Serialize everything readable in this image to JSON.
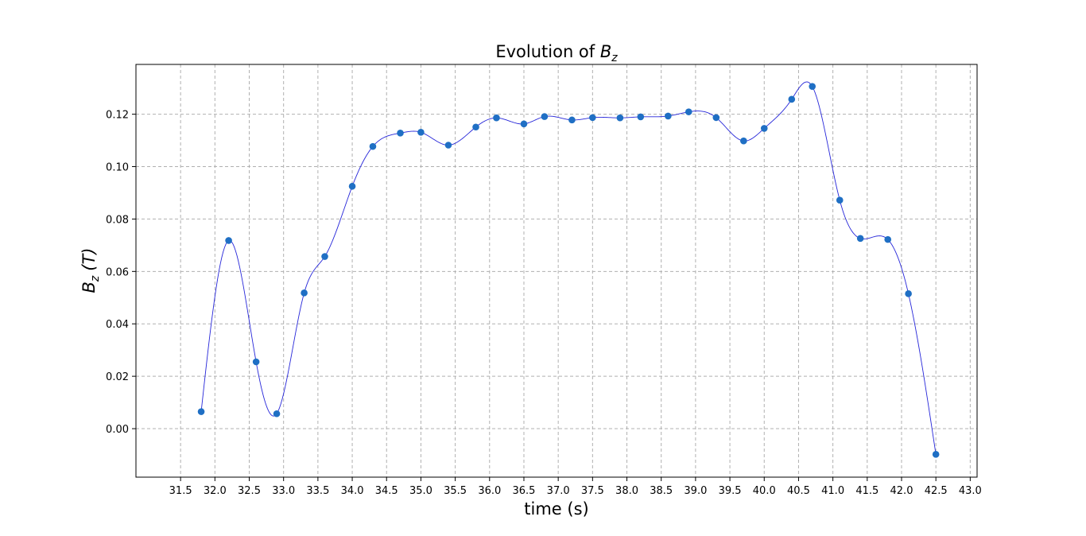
{
  "chart_data": {
    "type": "scatter",
    "title_prefix": "Evolution of ",
    "title_symbol": "B",
    "title_subscript": "z",
    "xlabel": "time (s)",
    "ylabel_symbol": "B",
    "ylabel_subscript": "z",
    "ylabel_unit": "(T)",
    "xlim": [
      30.85,
      43.1
    ],
    "ylim": [
      -0.0185,
      0.139
    ],
    "x_ticks": [
      31.5,
      32.0,
      32.5,
      33.0,
      33.5,
      34.0,
      34.5,
      35.0,
      35.5,
      36.0,
      36.5,
      37.0,
      37.5,
      38.0,
      38.5,
      39.0,
      39.5,
      40.0,
      40.5,
      41.0,
      41.5,
      42.0,
      42.5,
      43.0
    ],
    "x_tick_labels": [
      "31.5",
      "32.0",
      "32.5",
      "33.0",
      "33.5",
      "34.0",
      "34.5",
      "35.0",
      "35.5",
      "36.0",
      "36.5",
      "37.0",
      "37.5",
      "38.0",
      "38.5",
      "39.0",
      "39.5",
      "40.0",
      "40.5",
      "41.0",
      "41.5",
      "42.0",
      "42.5",
      "43.0"
    ],
    "y_ticks": [
      0.0,
      0.02,
      0.04,
      0.06,
      0.08,
      0.1,
      0.12
    ],
    "y_tick_labels": [
      "0.00",
      "0.02",
      "0.04",
      "0.06",
      "0.08",
      "0.10",
      "0.12"
    ],
    "grid": true,
    "colors": {
      "points": "#1f6fc4",
      "line": "#2626d9"
    },
    "series": [
      {
        "x": [
          31.8,
          32.2,
          32.6,
          32.9,
          33.3,
          33.6,
          34.0,
          34.3,
          34.7,
          35.0,
          35.4,
          35.8,
          36.1,
          36.5,
          36.8,
          37.2,
          37.5,
          37.9,
          38.2,
          38.6,
          38.9,
          39.3,
          39.7,
          40.0,
          40.4,
          40.7,
          41.1,
          41.4,
          41.8,
          42.1,
          42.5
        ],
        "y": [
          0.0065,
          0.0718,
          0.0255,
          0.0057,
          0.0518,
          0.0657,
          0.0925,
          0.1077,
          0.1128,
          0.1131,
          0.1082,
          0.1151,
          0.1186,
          0.1163,
          0.1191,
          0.1178,
          0.1187,
          0.1186,
          0.119,
          0.1193,
          0.1209,
          0.1187,
          0.1098,
          0.1146,
          0.1257,
          0.1306,
          0.0872,
          0.0726,
          0.0722,
          0.0515,
          -0.0098
        ]
      }
    ]
  }
}
